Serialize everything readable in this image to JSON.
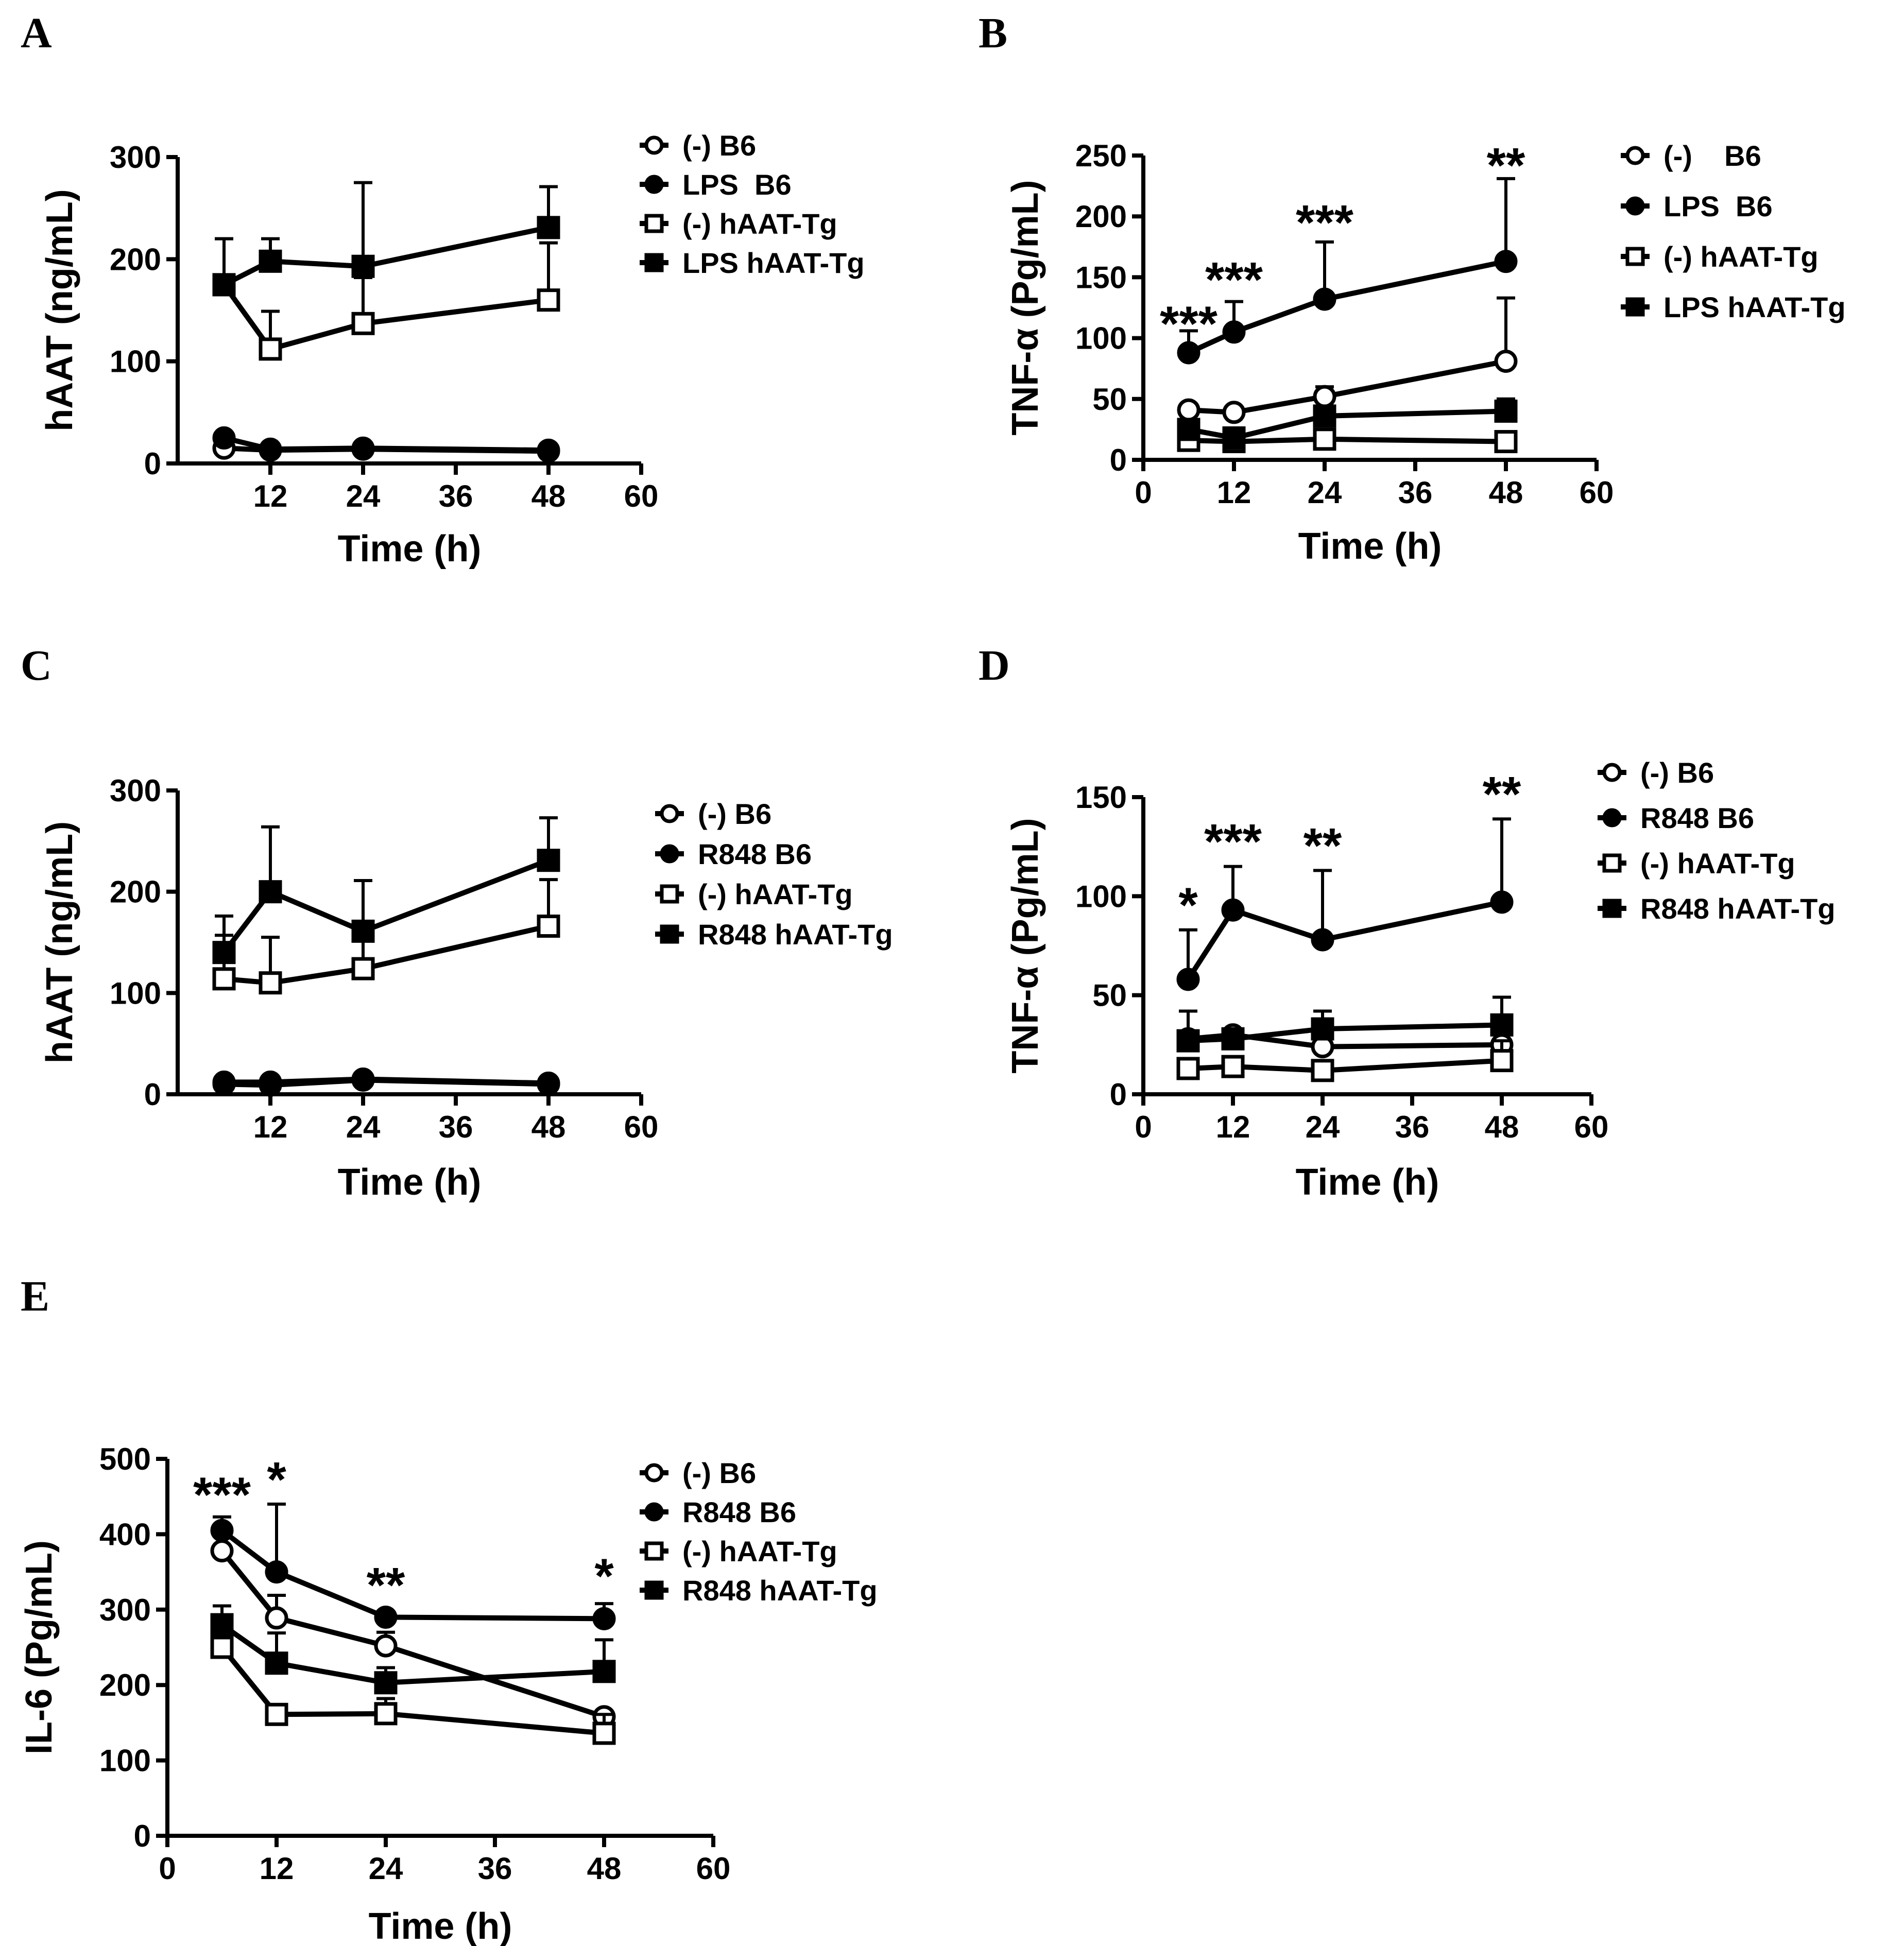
{
  "figure": {
    "panels": [
      {
        "id": "A",
        "letter": "A"
      },
      {
        "id": "B",
        "letter": "B"
      },
      {
        "id": "C",
        "letter": "C"
      },
      {
        "id": "D",
        "letter": "D"
      },
      {
        "id": "E",
        "letter": "E"
      }
    ]
  },
  "chart_data": [
    {
      "panel": "A",
      "type": "line",
      "xlabel": "Time (h)",
      "ylabel": "hAAT (ng/mL)",
      "xlim": [
        0,
        60
      ],
      "ylim": [
        0,
        300
      ],
      "xticks": [
        12,
        24,
        36,
        48,
        60
      ],
      "yticks": [
        0,
        100,
        200,
        300
      ],
      "x": [
        6,
        12,
        24,
        48
      ],
      "series": [
        {
          "name": "(-) B6",
          "marker": "open-circle",
          "values": [
            15,
            13,
            14,
            12
          ],
          "errors": [
            0,
            0,
            0,
            0
          ]
        },
        {
          "name": "LPS  B6",
          "marker": "filled-circle",
          "values": [
            25,
            14,
            15,
            13
          ],
          "errors": [
            0,
            0,
            0,
            0
          ]
        },
        {
          "name": "(-) hAAT-Tg",
          "marker": "open-square",
          "values": [
            175,
            112,
            137,
            160
          ],
          "errors": [
            45,
            37,
            45,
            56
          ]
        },
        {
          "name": "LPS hAAT-Tg",
          "marker": "filled-square",
          "values": [
            175,
            198,
            193,
            231
          ],
          "errors": [
            45,
            22,
            82,
            40
          ]
        }
      ],
      "annotations": []
    },
    {
      "panel": "B",
      "type": "line",
      "xlabel": "Time (h)",
      "ylabel": "TNF-α (Pg/mL)",
      "xlim": [
        0,
        60
      ],
      "ylim": [
        0,
        250
      ],
      "xticks": [
        0,
        12,
        24,
        36,
        48,
        60
      ],
      "yticks": [
        0,
        50,
        100,
        150,
        200,
        250
      ],
      "x": [
        6,
        12,
        24,
        48
      ],
      "series": [
        {
          "name": "(-)    B6",
          "marker": "open-circle",
          "values": [
            41,
            39,
            52,
            81
          ],
          "errors": [
            0,
            0,
            8,
            52
          ]
        },
        {
          "name": "LPS  B6",
          "marker": "filled-circle",
          "values": [
            88,
            105,
            132,
            163
          ],
          "errors": [
            18,
            25,
            47,
            68
          ]
        },
        {
          "name": "(-) hAAT-Tg",
          "marker": "open-square",
          "values": [
            16,
            15,
            17,
            15
          ],
          "errors": [
            0,
            0,
            0,
            0
          ]
        },
        {
          "name": "LPS hAAT-Tg",
          "marker": "filled-square",
          "values": [
            25,
            18,
            36,
            40
          ],
          "errors": [
            0,
            0,
            0,
            10
          ]
        }
      ],
      "annotations": [
        {
          "x": 6,
          "y": 98,
          "text": "***"
        },
        {
          "x": 12,
          "y": 134,
          "text": "***"
        },
        {
          "x": 24,
          "y": 181,
          "text": "***"
        },
        {
          "x": 48,
          "y": 228,
          "text": "**"
        }
      ]
    },
    {
      "panel": "C",
      "type": "line",
      "xlabel": "Time (h)",
      "ylabel": "hAAT (ng/mL)",
      "xlim": [
        0,
        60
      ],
      "ylim": [
        0,
        300
      ],
      "xticks": [
        12,
        24,
        36,
        48,
        60
      ],
      "yticks": [
        0,
        100,
        200,
        300
      ],
      "x": [
        6,
        12,
        24,
        48
      ],
      "series": [
        {
          "name": "(-) B6",
          "marker": "open-circle",
          "values": [
            10,
            9,
            14,
            10
          ],
          "errors": [
            0,
            0,
            0,
            0
          ]
        },
        {
          "name": "R848 B6",
          "marker": "filled-circle",
          "values": [
            12,
            12,
            15,
            11
          ],
          "errors": [
            0,
            0,
            0,
            0
          ]
        },
        {
          "name": "(-) hAAT-Tg",
          "marker": "open-square",
          "values": [
            114,
            110,
            124,
            166
          ],
          "errors": [
            43,
            45,
            34,
            46
          ]
        },
        {
          "name": "R848 hAAT-Tg",
          "marker": "filled-square",
          "values": [
            140,
            200,
            161,
            231
          ],
          "errors": [
            36,
            64,
            50,
            42
          ]
        }
      ],
      "annotations": []
    },
    {
      "panel": "D",
      "type": "line",
      "xlabel": "Time (h)",
      "ylabel": "TNF-α (Pg/mL)",
      "xlim": [
        0,
        60
      ],
      "ylim": [
        0,
        150
      ],
      "xticks": [
        0,
        12,
        24,
        36,
        48,
        60
      ],
      "yticks": [
        0,
        50,
        100,
        150
      ],
      "x": [
        6,
        12,
        24,
        48
      ],
      "series": [
        {
          "name": "(-) B6",
          "marker": "open-circle",
          "values": [
            28,
            30,
            24,
            25
          ],
          "errors": [
            0,
            0,
            0,
            0
          ]
        },
        {
          "name": "R848 B6",
          "marker": "filled-circle",
          "values": [
            58,
            93,
            78,
            97
          ],
          "errors": [
            25,
            22,
            35,
            42
          ]
        },
        {
          "name": "(-) hAAT-Tg",
          "marker": "open-square",
          "values": [
            13,
            14,
            12,
            17
          ],
          "errors": [
            0,
            0,
            0,
            10
          ]
        },
        {
          "name": "R848 hAAT-Tg",
          "marker": "filled-square",
          "values": [
            27,
            28,
            33,
            35
          ],
          "errors": [
            15,
            0,
            9,
            14
          ]
        }
      ],
      "annotations": [
        {
          "x": 6,
          "y": 87,
          "text": "*"
        },
        {
          "x": 12,
          "y": 119,
          "text": "***"
        },
        {
          "x": 24,
          "y": 117,
          "text": "**"
        },
        {
          "x": 48,
          "y": 143,
          "text": "**"
        }
      ]
    },
    {
      "panel": "E",
      "type": "line",
      "xlabel": "Time (h)",
      "ylabel": "IL-6 (Pg/mL)",
      "xlim": [
        0,
        60
      ],
      "ylim": [
        0,
        500
      ],
      "xticks": [
        0,
        12,
        24,
        36,
        48,
        60
      ],
      "yticks": [
        0,
        100,
        200,
        300,
        400,
        500
      ],
      "x": [
        6,
        12,
        24,
        48
      ],
      "series": [
        {
          "name": "(-) B6",
          "marker": "open-circle",
          "values": [
            378,
            289,
            252,
            158
          ],
          "errors": [
            25,
            30,
            18,
            0
          ]
        },
        {
          "name": "R848 B6",
          "marker": "filled-circle",
          "values": [
            405,
            350,
            290,
            288
          ],
          "errors": [
            18,
            90,
            0,
            20
          ]
        },
        {
          "name": "(-) hAAT-Tg",
          "marker": "open-square",
          "values": [
            250,
            161,
            162,
            136
          ],
          "errors": [
            35,
            0,
            20,
            25
          ]
        },
        {
          "name": "R848 hAAT-Tg",
          "marker": "filled-square",
          "values": [
            280,
            229,
            203,
            218
          ],
          "errors": [
            25,
            40,
            20,
            42
          ]
        }
      ],
      "annotations": [
        {
          "x": 6,
          "y": 430,
          "text": "***"
        },
        {
          "x": 12,
          "y": 450,
          "text": "*"
        },
        {
          "x": 24,
          "y": 310,
          "text": "**"
        },
        {
          "x": 48,
          "y": 322,
          "text": "*"
        }
      ]
    }
  ]
}
